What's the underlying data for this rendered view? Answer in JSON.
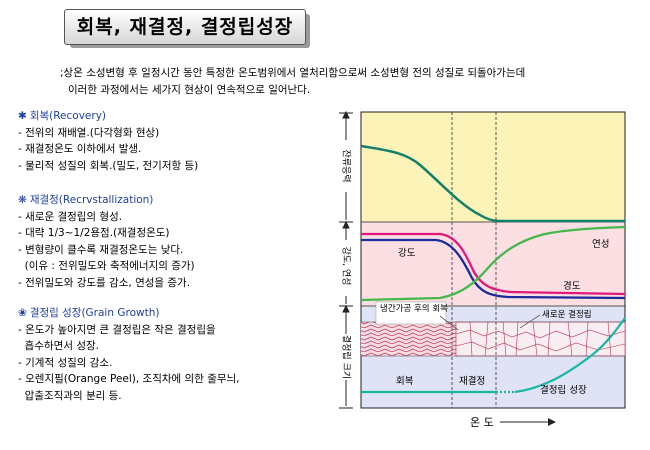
{
  "title": "회복, 재결정, 결정립성장",
  "intro": {
    "line1": ";상온 소성변형 후 일정시간 동안 특정한 온도범위에서 열처리함으로써 소성변형 전의 성질로 되돌아가는데",
    "line2": "이러한 과정에서는 세가지 현상이 연속적으로 일어난다."
  },
  "sections": [
    {
      "heading": "회복(Recovery)",
      "items": [
        "- 전위의 재배열.(다각형화 현상)",
        "- 재결정온도 이하에서 발생.",
        "- 물리적 성질의 회복.(밀도, 전기저항 등)"
      ]
    },
    {
      "heading": "재결정(Recrvstallization)",
      "items": [
        "- 새로운 결정립의 형성.",
        "- 대략 1/3~1/2용점.(재결정온도)",
        "- 변형량이 클수록 재결정온도는 낮다.",
        "  (이유 : 전위밀도와 축적에너지의 증가)",
        "- 전위밀도와 강도를 감소, 연성을 증가."
      ]
    },
    {
      "heading": "결정립 성장(Grain Growth)",
      "items": [
        "- 온도가 높아지면 큰 결정립은 작은 결정립을",
        "  흡수하면서 성장.",
        "- 기계적 성질의 감소.",
        "- 오렌지필(Orange Peel), 조직차에 의한 줄무늬,",
        "  압출조직과의 분리 등."
      ]
    }
  ],
  "diagram": {
    "y_labels": {
      "stored_energy": "잔류응력",
      "strength_ductility": "강도, 연성",
      "grain_size": "결정립 크기"
    },
    "labels": {
      "strength_1": "강도",
      "strength_2": "경도",
      "ductility": "연성",
      "cold_worked_grains": "냉간가공 후의 회복",
      "new_grains": "새로운 결정립",
      "stage_recovery": "회복",
      "stage_recrystallization": "재결정",
      "stage_grain_growth": "결정립 성장",
      "x_axis": "온 도"
    },
    "colors": {
      "top_panel": "#fbf3b8",
      "middle_panel": "#fbdfe3",
      "bottom_panel": "#dfe3f5",
      "residual_stress_curve": "#13806b",
      "strength_curve": "#e0197a",
      "hardness_curve": "#1a2b9c",
      "ductility_curve": "#46b84a",
      "grain_size_curve": "#17b7a2",
      "heading_blue": "#1f3fa0"
    }
  }
}
